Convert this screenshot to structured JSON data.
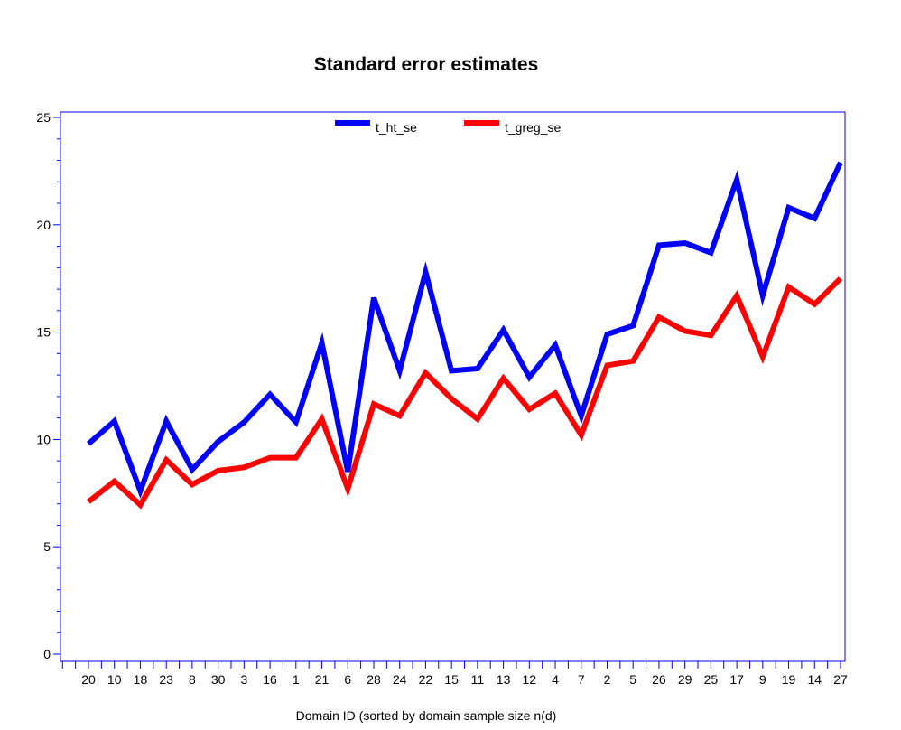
{
  "chart_data": {
    "type": "line",
    "title": "Standard error estimates",
    "xlabel": "Domain ID (sorted by domain sample size n(d)",
    "ylabel": "",
    "categories": [
      "20",
      "10",
      "18",
      "23",
      "8",
      "30",
      "3",
      "16",
      "1",
      "21",
      "6",
      "28",
      "24",
      "22",
      "15",
      "11",
      "13",
      "12",
      "4",
      "7",
      "2",
      "5",
      "26",
      "29",
      "25",
      "17",
      "9",
      "19",
      "14",
      "27"
    ],
    "series": [
      {
        "name": "t_ht_se",
        "color": "#0000ff",
        "values": [
          9.8,
          10.85,
          7.6,
          10.85,
          8.6,
          9.9,
          10.8,
          12.1,
          10.8,
          14.5,
          8.5,
          16.6,
          13.2,
          17.8,
          13.2,
          13.3,
          15.1,
          12.9,
          14.4,
          11.1,
          14.9,
          15.3,
          19.05,
          19.15,
          18.7,
          22.1,
          16.7,
          20.8,
          20.3,
          22.9
        ]
      },
      {
        "name": "t_greg_se",
        "color": "#ff0000",
        "values": [
          7.1,
          8.05,
          6.95,
          9.05,
          7.9,
          8.55,
          8.7,
          9.15,
          9.15,
          10.95,
          7.7,
          11.65,
          11.1,
          13.1,
          11.9,
          10.95,
          12.85,
          11.4,
          12.15,
          10.2,
          13.45,
          13.65,
          15.7,
          15.05,
          14.85,
          16.7,
          13.85,
          17.1,
          16.3,
          17.5
        ]
      }
    ],
    "yticks": [
      0,
      5,
      10,
      15,
      20,
      25
    ],
    "ylim": [
      0,
      25
    ],
    "legend_position": "top-center",
    "grid": false,
    "frame_color": "#0000ff"
  }
}
